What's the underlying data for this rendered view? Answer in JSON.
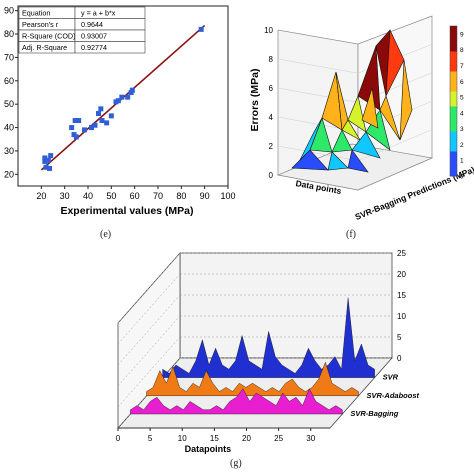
{
  "captions": {
    "e": "(e)",
    "f": "(f)",
    "g": "(g)"
  },
  "chart_data": [
    {
      "panel": "e",
      "type": "scatter",
      "xlabel": "Experimental values (MPa)",
      "ylabel": "",
      "xlim": [
        10,
        100
      ],
      "ylim": [
        15,
        92
      ],
      "x_ticks": [
        "20",
        "30",
        "40",
        "50",
        "60",
        "70",
        "80",
        "90",
        "100"
      ],
      "y_ticks": [
        "20",
        "30",
        "40",
        "50",
        "60",
        "70",
        "80",
        "90"
      ],
      "points": [
        [
          21.5,
          25.5
        ],
        [
          22,
          23
        ],
        [
          23,
          26
        ],
        [
          21.5,
          27
        ],
        [
          24,
          28
        ],
        [
          23.5,
          22.5
        ],
        [
          33,
          40
        ],
        [
          34,
          37
        ],
        [
          34.5,
          43
        ],
        [
          36,
          43
        ],
        [
          35,
          36
        ],
        [
          38.5,
          39
        ],
        [
          41.5,
          40
        ],
        [
          43,
          41
        ],
        [
          44.5,
          46
        ],
        [
          45.5,
          48
        ],
        [
          46,
          43
        ],
        [
          48,
          42
        ],
        [
          50,
          45
        ],
        [
          52,
          51
        ],
        [
          53,
          51.5
        ],
        [
          54.5,
          53
        ],
        [
          57,
          53
        ],
        [
          59,
          56
        ],
        [
          58.5,
          55
        ],
        [
          88.5,
          82
        ]
      ],
      "fit": {
        "a": 4.21,
        "b": 0.883,
        "x_range": [
          20,
          90
        ],
        "color": "#8b1010"
      },
      "stats_table": [
        [
          "Equation",
          "y = a + b*x"
        ],
        [
          "Pearson's r",
          "0.9644"
        ],
        [
          "R-Square (COD)",
          "0.93007"
        ],
        [
          "Adj. R-Square",
          "0.92774"
        ]
      ],
      "point_color": "#2e5fd6"
    },
    {
      "panel": "f",
      "type": "surface",
      "zlabel": "Errors (MPa)",
      "xlabel": "Data points",
      "ylabel": "SVR-Bagging Predictions (MPa)",
      "z_ticks": [
        "0",
        "2",
        "4",
        "6",
        "8",
        "10"
      ],
      "colorbar_ticks": [
        "0",
        "1",
        "2",
        "3",
        "4",
        "5",
        "6",
        "7",
        "8",
        "9"
      ],
      "colorbar_range": [
        0,
        9.5
      ]
    },
    {
      "panel": "g",
      "type": "area",
      "xlabel": "Datapoints",
      "x_ticks": [
        "0",
        "5",
        "10",
        "15",
        "20",
        "25",
        "30"
      ],
      "z_ticks": [
        "0",
        "5",
        "10",
        "15",
        "20",
        "25"
      ],
      "xlim": [
        0,
        33
      ],
      "zlim": [
        0,
        25
      ],
      "series": [
        {
          "name": "SVR",
          "color": "#1f2fd0",
          "values": [
            2,
            1,
            3,
            2,
            1,
            4,
            9,
            3,
            7,
            3,
            2,
            4,
            10,
            4,
            3,
            2,
            11,
            5,
            3,
            2,
            1,
            3,
            7,
            4,
            2,
            3,
            5,
            2,
            19,
            4,
            8,
            3,
            2
          ]
        },
        {
          "name": "SVR-Adaboost",
          "color": "#f07a16",
          "values": [
            1,
            2,
            6,
            3,
            7,
            2,
            1,
            3,
            2,
            6,
            3,
            1,
            2,
            1,
            3,
            2,
            3,
            2,
            1,
            2,
            1,
            3,
            4,
            2,
            1,
            2,
            4,
            8,
            3,
            2,
            1,
            2,
            1
          ]
        },
        {
          "name": "SVR-Bagging",
          "color": "#e81fd0",
          "values": [
            1,
            2,
            1,
            3,
            4,
            2,
            1,
            2,
            1,
            3,
            2,
            1,
            1,
            2,
            1,
            3,
            4,
            6,
            3,
            5,
            4,
            3,
            2,
            5,
            3,
            4,
            2,
            6,
            3,
            2,
            1,
            2,
            1
          ]
        }
      ]
    }
  ]
}
